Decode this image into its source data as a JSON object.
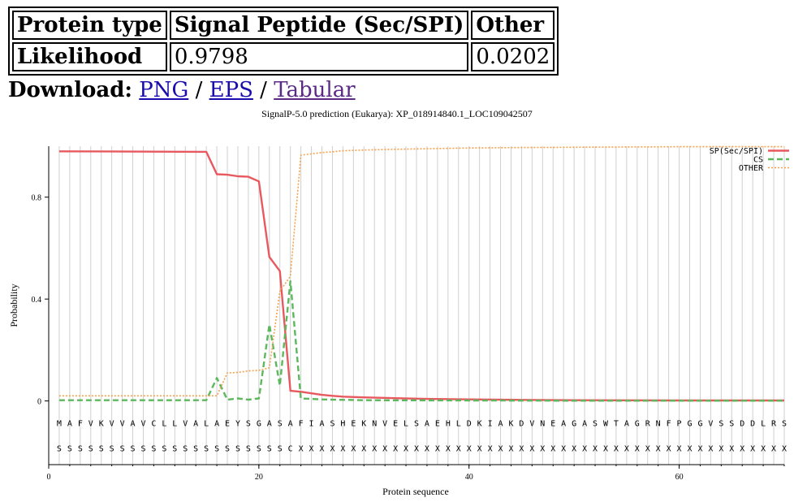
{
  "table": {
    "headers": [
      "Protein type",
      "Signal Peptide (Sec/SPI)",
      "Other"
    ],
    "row_label": "Likelihood",
    "values": [
      "0.9798",
      "0.0202"
    ]
  },
  "download": {
    "label": "Download:",
    "links": [
      "PNG",
      "EPS",
      "Tabular"
    ],
    "separator": "/"
  },
  "chart_data": {
    "type": "line",
    "title": "SignalP-5.0 prediction (Eukarya):  XP_018914840.1_LOC109042507",
    "xlabel": "Protein sequence",
    "ylabel": "Probability",
    "xlim": [
      0,
      70
    ],
    "ylim": [
      -0.25,
      1.0
    ],
    "x_ticks": [
      0,
      20,
      40,
      60
    ],
    "x_tick_labels": [
      "0",
      "20",
      "40",
      "60"
    ],
    "y_ticks": [
      0,
      0.4,
      0.8
    ],
    "y_tick_labels": [
      "0",
      "0.4",
      "0.8"
    ],
    "grid": "vertical lines at each residue",
    "legend_position": "top-right",
    "legend": [
      "SP(Sec/SPI)",
      "CS",
      "OTHER"
    ],
    "colors": {
      "sp": "#e8595f",
      "cs": "#5cb85c",
      "other": "#f5a04b"
    },
    "sequence": [
      "M",
      "A",
      "F",
      "V",
      "K",
      "V",
      "V",
      "A",
      "V",
      "C",
      "L",
      "L",
      "V",
      "A",
      "L",
      "A",
      "E",
      "Y",
      "S",
      "G",
      "A",
      "S",
      "A",
      "F",
      "I",
      "A",
      "S",
      "H",
      "E",
      "K",
      "N",
      "V",
      "E",
      "L",
      "S",
      "A",
      "E",
      "H",
      "L",
      "D",
      "K",
      "I",
      "A",
      "K",
      "D",
      "V",
      "N",
      "E",
      "A",
      "G",
      "A",
      "S",
      "W",
      "T",
      "A",
      "G",
      "R",
      "N",
      "F",
      "P",
      "G",
      "G",
      "V",
      "S",
      "S",
      "D",
      "D",
      "L",
      "R",
      "S"
    ],
    "labels": [
      "S",
      "S",
      "S",
      "S",
      "S",
      "S",
      "S",
      "S",
      "S",
      "S",
      "S",
      "S",
      "S",
      "S",
      "S",
      "S",
      "S",
      "S",
      "S",
      "S",
      "S",
      "S",
      "C",
      "X",
      "X",
      "X",
      "X",
      "X",
      "X",
      "X",
      "X",
      "X",
      "X",
      "X",
      "X",
      "X",
      "X",
      "X",
      "X",
      "X",
      "X",
      "X",
      "X",
      "X",
      "X",
      "X",
      "X",
      "X",
      "X",
      "X",
      "X",
      "X",
      "X",
      "X",
      "X",
      "X",
      "X",
      "X",
      "X",
      "X",
      "X",
      "X",
      "X",
      "X",
      "X",
      "X",
      "X",
      "X",
      "X",
      "X"
    ],
    "series": [
      {
        "name": "SP(Sec/SPI)",
        "x": [
          1,
          15,
          16,
          17,
          18,
          19,
          20,
          21,
          22,
          23,
          24,
          25,
          26,
          27,
          28,
          30,
          33,
          36,
          40,
          45,
          50,
          60,
          70
        ],
        "values": [
          0.98,
          0.978,
          0.89,
          0.888,
          0.882,
          0.88,
          0.862,
          0.565,
          0.51,
          0.04,
          0.036,
          0.03,
          0.024,
          0.02,
          0.017,
          0.014,
          0.011,
          0.008,
          0.006,
          0.004,
          0.003,
          0.002,
          0.002
        ]
      },
      {
        "name": "CS",
        "x": [
          1,
          15,
          16,
          17,
          18,
          19,
          20,
          21,
          22,
          23,
          24,
          25,
          26,
          27,
          30,
          40,
          50,
          70
        ],
        "values": [
          0.003,
          0.003,
          0.09,
          0.005,
          0.01,
          0.005,
          0.01,
          0.3,
          0.06,
          0.47,
          0.01,
          0.008,
          0.006,
          0.005,
          0.003,
          0.002,
          0.001,
          0.001
        ]
      },
      {
        "name": "OTHER",
        "x": [
          1,
          15,
          16,
          17,
          18,
          19,
          20,
          21,
          22,
          23,
          24,
          25,
          26,
          27,
          28,
          30,
          33,
          36,
          40,
          45,
          50,
          60,
          70
        ],
        "values": [
          0.02,
          0.02,
          0.02,
          0.11,
          0.112,
          0.118,
          0.12,
          0.13,
          0.43,
          0.49,
          0.965,
          0.97,
          0.975,
          0.978,
          0.982,
          0.985,
          0.988,
          0.99,
          0.993,
          0.995,
          0.996,
          0.998,
          0.998
        ]
      }
    ]
  }
}
